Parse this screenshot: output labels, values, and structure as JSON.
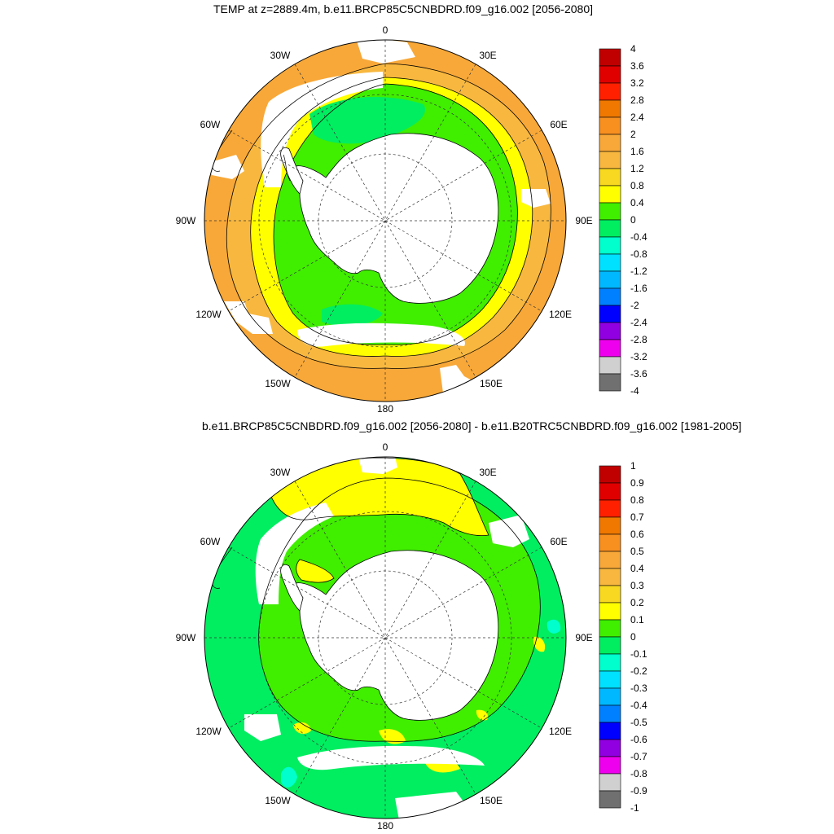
{
  "panels": [
    {
      "title": "TEMP at z=2889.4m, b.e11.BRCP85C5CNBDRD.f09_g16.002 [2056-2080]",
      "lon_labels": [
        "0",
        "30E",
        "60E",
        "90E",
        "120E",
        "150E",
        "180",
        "150W",
        "120W",
        "90W",
        "60W",
        "30W"
      ],
      "colorbar": {
        "labels": [
          "4",
          "3.6",
          "3.2",
          "2.8",
          "2.4",
          "2",
          "1.6",
          "1.2",
          "0.8",
          "0.4",
          "0",
          "-0.4",
          "-0.8",
          "-1.2",
          "-1.6",
          "-2",
          "-2.4",
          "-2.8",
          "-3.2",
          "-3.6",
          "-4"
        ],
        "colors": [
          "#c00000",
          "#e00000",
          "#ff2000",
          "#f07800",
          "#f89020",
          "#f8a838",
          "#f8b840",
          "#f8d820",
          "#ffff00",
          "#40ee00",
          "#00ee60",
          "#00ffcc",
          "#00e0ff",
          "#00b8ff",
          "#0080ff",
          "#0000ff",
          "#9000e0",
          "#ee00ee",
          "#d0d0d0",
          "#707070"
        ]
      },
      "regions": {
        "outer_band_color": "#f8a838",
        "mid_band_color": "#f8b840",
        "yellow_band_color": "#ffff00",
        "inner_color": "#40ee00",
        "pool_color": "#00ee60"
      }
    },
    {
      "title": "b.e11.BRCP85C5CNBDRD.f09_g16.002 [2056-2080] - b.e11.B20TRC5CNBDRD.f09_g16.002 [1981-2005]",
      "lon_labels": [
        "0",
        "30E",
        "60E",
        "90E",
        "120E",
        "150E",
        "180",
        "150W",
        "120W",
        "90W",
        "60W",
        "30W"
      ],
      "colorbar": {
        "labels": [
          "1",
          "0.9",
          "0.8",
          "0.7",
          "0.6",
          "0.5",
          "0.4",
          "0.3",
          "0.2",
          "0.1",
          "0",
          "-0.1",
          "-0.2",
          "-0.3",
          "-0.4",
          "-0.5",
          "-0.6",
          "-0.7",
          "-0.8",
          "-0.9",
          "-1"
        ],
        "colors": [
          "#c00000",
          "#e00000",
          "#ff2000",
          "#f07800",
          "#f89020",
          "#f8a838",
          "#f8b840",
          "#f8d820",
          "#ffff00",
          "#40ee00",
          "#00ee60",
          "#00ffcc",
          "#00e0ff",
          "#00b8ff",
          "#0080ff",
          "#0000ff",
          "#9000e0",
          "#ee00ee",
          "#d0d0d0",
          "#707070"
        ]
      },
      "regions": {
        "outer_band_color": "#00ee60",
        "yellow_band_color": "#ffff00",
        "inner_color": "#40ee00",
        "pool_color": "#00ffcc"
      }
    }
  ]
}
